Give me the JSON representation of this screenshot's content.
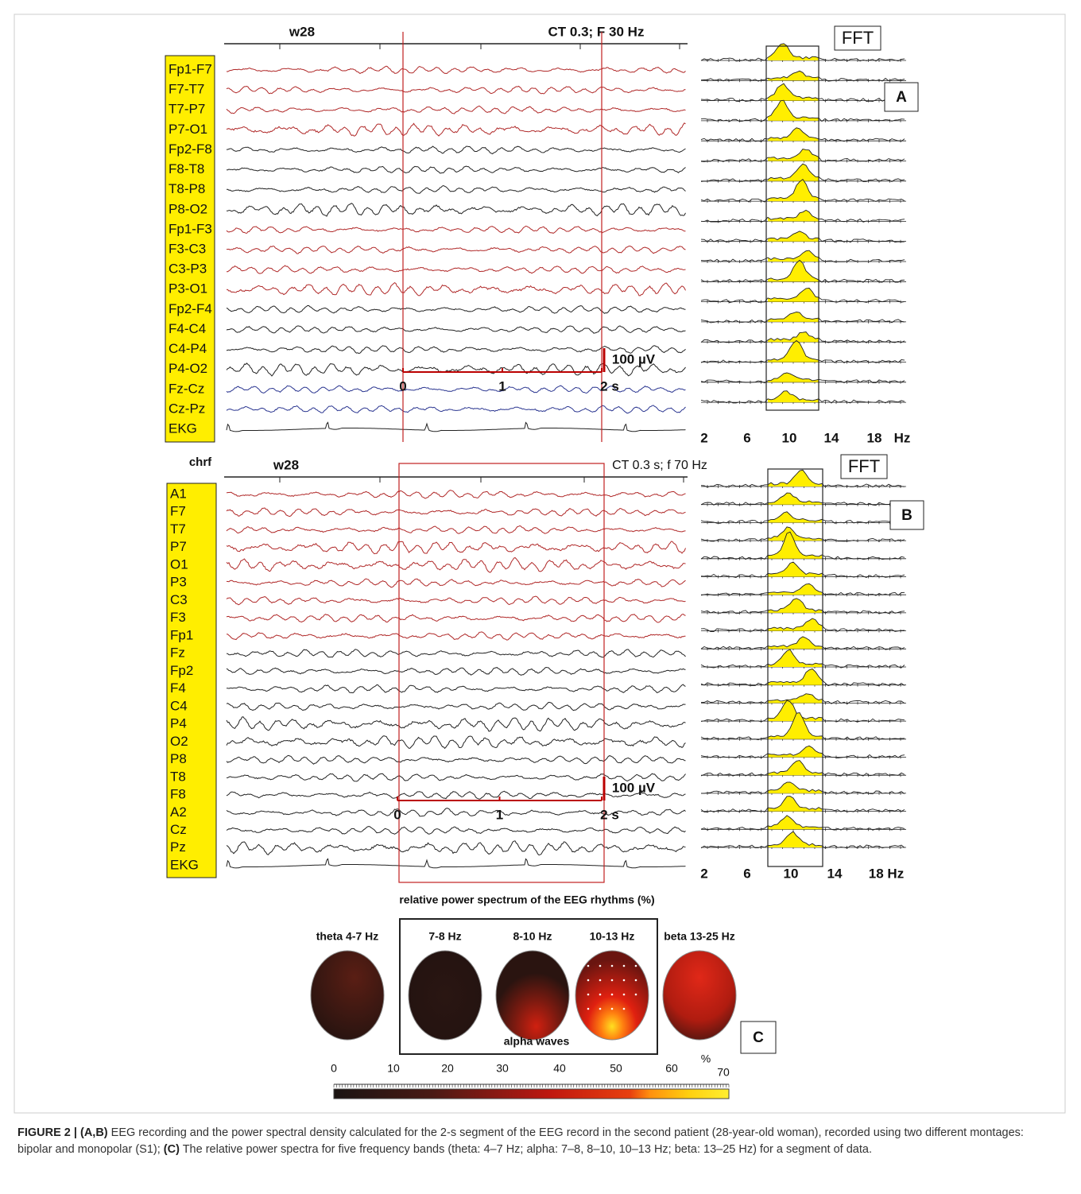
{
  "panel_a": {
    "window": "w28",
    "settings": "CT 0.3; F 30 Hz",
    "fft_label": "FFT",
    "panel_label": "A",
    "channels": [
      "Fp1-F7",
      "F7-T7",
      "T7-P7",
      "P7-O1",
      "Fp2-F8",
      "F8-T8",
      "T8-P8",
      "P8-O2",
      "Fp1-F3",
      "F3-C3",
      "C3-P3",
      "P3-O1",
      "Fp2-F4",
      "F4-C4",
      "C4-P4",
      "P4-O2",
      "Fz-Cz",
      "Cz-Pz",
      "EKG"
    ],
    "time_labels": [
      "0",
      "1",
      "2 s"
    ],
    "scale_label": "100 µV",
    "freq_labels": [
      "2",
      "6",
      "10",
      "14",
      "18",
      "Hz"
    ]
  },
  "panel_b": {
    "corner": "chrf",
    "window": "w28",
    "settings": "CT 0.3 s; f 70 Hz",
    "fft_label": "FFT",
    "panel_label": "B",
    "channels": [
      "A1",
      "F7",
      "T7",
      "P7",
      "O1",
      "P3",
      "C3",
      "F3",
      "Fp1",
      "Fz",
      "Fp2",
      "F4",
      "C4",
      "P4",
      "O2",
      "P8",
      "T8",
      "F8",
      "A2",
      "Cz",
      "Pz",
      "EKG"
    ],
    "time_labels": [
      "0",
      "1",
      "2 s"
    ],
    "scale_label": "100 µV",
    "freq_labels": [
      "2",
      "6",
      "10",
      "14",
      "18 Hz"
    ]
  },
  "panel_c": {
    "title": "relative power spectrum of the EEG rhythms (%)",
    "maps": [
      "theta 4-7 Hz",
      "7-8 Hz",
      "8-10 Hz",
      "10-13 Hz",
      "beta 13-25 Hz"
    ],
    "group_label": "alpha waves",
    "panel_label": "C",
    "scale_ticks": [
      "0",
      "10",
      "20",
      "30",
      "40",
      "50",
      "60",
      "70"
    ],
    "scale_unit": "%"
  },
  "caption": {
    "label": "FIGURE 2 | (A,B)",
    "text_1": " EEG recording and the power spectral density calculated for the 2-s segment of the EEG record in the second patient (28-year-old woman), recorded using two different montages: bipolar and monopolar (S1); ",
    "label_c": "(C)",
    "text_2": " The relative power spectra for five frequency bands (theta: 4–7 Hz; alpha: 7–8, 8–10, 10–13 Hz; beta: 13–25 Hz) for a segment of data."
  }
}
